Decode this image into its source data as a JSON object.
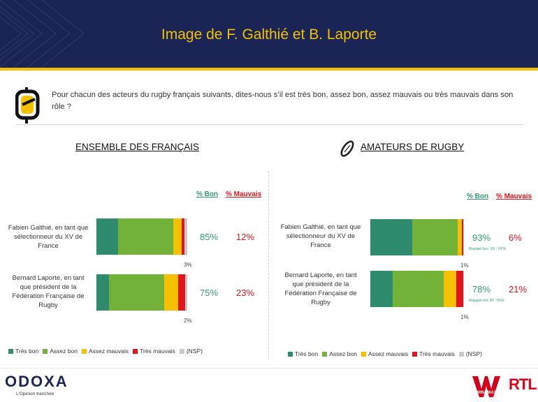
{
  "title": "Image de F. Galthié et B. Laporte",
  "question": "Pour chacun des acteurs du rugby français suivants, dites-nous s’il est très bon, assez bon, assez mauvais ou très mauvais dans son rôle ?",
  "colors": {
    "tres_bon": "#2e8b6e",
    "assez_bon": "#73b239",
    "assez_mauvais": "#f5c000",
    "tres_mauvais": "#e3141c",
    "nsp": "#c8c8c8",
    "header": "#1b2555",
    "accent": "#f2c200"
  },
  "chart_data": [
    {
      "type": "bar",
      "title": "ENSEMBLE DES FRANÇAIS",
      "summary_headers": {
        "bon": "% Bon",
        "mauvais": "% Mauvais"
      },
      "categories": [
        "Fabien Galthié, en tant que sélectionneur du XV de France",
        "Bernard Laporte, en tant que président de la Fédération Française de Rugby"
      ],
      "category_lines": [
        [
          "Fabien Galthié, en tant que",
          "sélectionneur du XV de",
          "France"
        ],
        [
          "Bernard Laporte, en tant",
          "que président de la",
          "Fédération Française de",
          "Rugby"
        ]
      ],
      "series": [
        {
          "name": "Très bon",
          "values": [
            24,
            14
          ]
        },
        {
          "name": "Assez bon",
          "values": [
            61,
            61
          ]
        },
        {
          "name": "Assez mauvais",
          "values": [
            9,
            15
          ]
        },
        {
          "name": "Très mauvais",
          "values": [
            3,
            8
          ]
        },
        {
          "name": "(NSP)",
          "values": [
            3,
            2
          ]
        }
      ],
      "segment_labels": [
        [
          "24%",
          "61%",
          "9%",
          "3%",
          "3%"
        ],
        [
          "14%",
          "61%",
          "15%",
          "8%",
          "2%"
        ]
      ],
      "summary_bon": [
        "85%",
        "75%"
      ],
      "summary_mauvais": [
        "12%",
        "23%"
      ]
    },
    {
      "type": "bar",
      "title": "AMATEURS DE RUGBY",
      "summary_headers": {
        "bon": "% Bon",
        "mauvais": "% Mauvais"
      },
      "categories": [
        "Fabien Galthié, en tant que sélectionneur du XV de France",
        "Bernard Laporte, en tant que président de la Fédération Française de Rugby"
      ],
      "category_lines": [
        [
          "Fabien Galthié, en tant que",
          "sélectionneur du XV de",
          "France"
        ],
        [
          "Bernard Laporte, en tant",
          "que président de la",
          "Fédération Française de",
          "Rugby"
        ]
      ],
      "series": [
        {
          "name": "Très bon",
          "values": [
            45,
            24
          ]
        },
        {
          "name": "Assez bon",
          "values": [
            48,
            54
          ]
        },
        {
          "name": "Assez mauvais",
          "values": [
            5,
            14
          ]
        },
        {
          "name": "Très mauvais",
          "values": [
            1,
            7
          ]
        },
        {
          "name": "(NSP)",
          "values": [
            1,
            1
          ]
        }
      ],
      "segment_labels": [
        [
          "45%",
          "48%",
          "5%",
          "1%",
          "1%"
        ],
        [
          "24%",
          "54%",
          "14%",
          "7%",
          "1%"
        ]
      ],
      "summary_bon": [
        "93%",
        "78%"
      ],
      "summary_mauvais": [
        "6%",
        "21%"
      ],
      "recall_notes": [
        "Rappel fev. 20 : 97%",
        "Rappel oct 20 :76%"
      ]
    }
  ],
  "legend": [
    "Très bon",
    "Assez bon",
    "Assez mauvais",
    "Très mauvais",
    "(NSP)"
  ],
  "logos": {
    "odoxa": "ODOXA",
    "odoxa_tagline": "L'Opinion tranchée",
    "winamax": "WINAMAX",
    "rtl": "RTL"
  }
}
